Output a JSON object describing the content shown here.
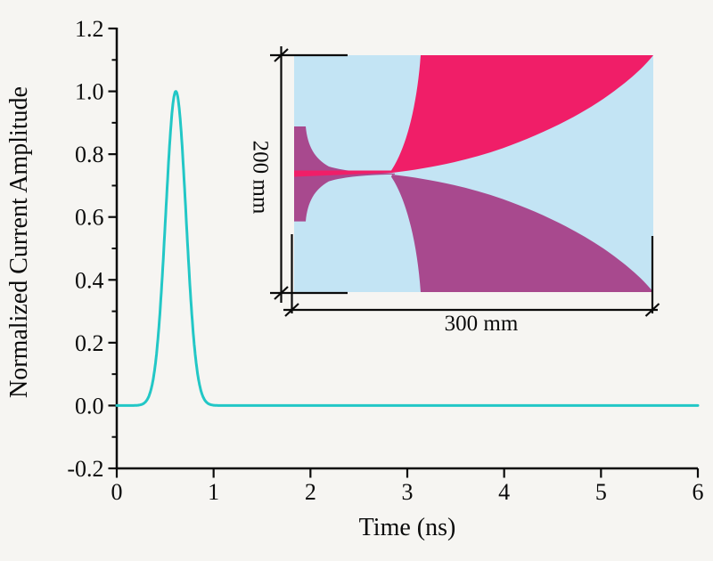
{
  "figure": {
    "background_color": "#f6f5f2",
    "axis_color": "#0b0b0b",
    "text_color": "#0b0b0b"
  },
  "chart_data": {
    "type": "line",
    "title": "",
    "xlabel": "Time (ns)",
    "ylabel": "Normalized Current Amplitude",
    "xlim": [
      0,
      6
    ],
    "ylim": [
      -0.2,
      1.2
    ],
    "x_major_ticks": [
      0,
      1,
      2,
      3,
      4,
      5,
      6
    ],
    "x_tick_labels": [
      "0",
      "1",
      "2",
      "3",
      "4",
      "5",
      "6"
    ],
    "y_major_ticks": [
      -0.2,
      0.0,
      0.2,
      0.4,
      0.6,
      0.8,
      1.0,
      1.2
    ],
    "y_tick_labels": [
      "-0.2",
      "0.0",
      "0.2",
      "0.4",
      "0.6",
      "0.8",
      "1.0",
      "1.2"
    ],
    "y_minor_ticks": [
      -0.1,
      0.1,
      0.3,
      0.5,
      0.7,
      0.9,
      1.1
    ],
    "grid": false,
    "legend": null,
    "series": [
      {
        "name": "normalized current pulse",
        "color": "#22c7c6",
        "curve": "gaussian",
        "peak_time_ns": 0.61,
        "sigma_ns": 0.105,
        "peak_amplitude": 1.0,
        "baseline": 0.0
      }
    ]
  },
  "inset": {
    "height_label": "200 mm",
    "width_label": "300 mm",
    "substrate_color": "#c3e4f4",
    "top_arm_color": "#f01e68",
    "bottom_arm_color": "#a8498e"
  }
}
